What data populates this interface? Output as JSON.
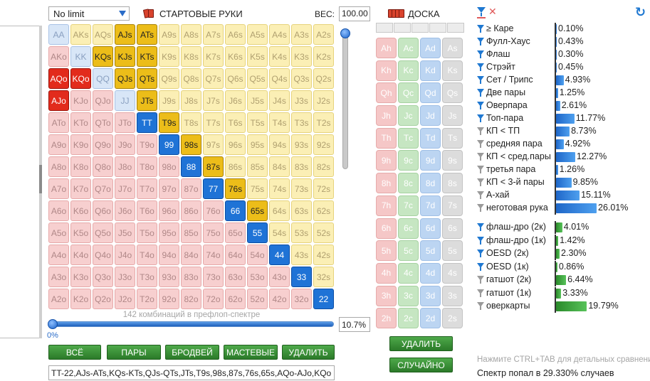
{
  "limit_select": {
    "value": "No limit"
  },
  "hands_title": "СТАРТОВЫЕ РУКИ",
  "weight": {
    "label": "ВЕС:",
    "value": "100.00"
  },
  "grid": [
    [
      "AA",
      "AKs",
      "AQs",
      "AJs",
      "ATs",
      "A9s",
      "A8s",
      "A7s",
      "A6s",
      "A5s",
      "A4s",
      "A3s",
      "A2s"
    ],
    [
      "AKo",
      "KK",
      "KQs",
      "KJs",
      "KTs",
      "K9s",
      "K8s",
      "K7s",
      "K6s",
      "K5s",
      "K4s",
      "K3s",
      "K2s"
    ],
    [
      "AQo",
      "KQo",
      "QQ",
      "QJs",
      "QTs",
      "Q9s",
      "Q8s",
      "Q7s",
      "Q6s",
      "Q5s",
      "Q4s",
      "Q3s",
      "Q2s"
    ],
    [
      "AJo",
      "KJo",
      "QJo",
      "JJ",
      "JTs",
      "J9s",
      "J8s",
      "J7s",
      "J6s",
      "J5s",
      "J4s",
      "J3s",
      "J2s"
    ],
    [
      "ATo",
      "KTo",
      "QTo",
      "JTo",
      "TT",
      "T9s",
      "T8s",
      "T7s",
      "T6s",
      "T5s",
      "T4s",
      "T3s",
      "T2s"
    ],
    [
      "A9o",
      "K9o",
      "Q9o",
      "J9o",
      "T9o",
      "99",
      "98s",
      "97s",
      "96s",
      "95s",
      "94s",
      "93s",
      "92s"
    ],
    [
      "A8o",
      "K8o",
      "Q8o",
      "J8o",
      "T8o",
      "98o",
      "88",
      "87s",
      "86s",
      "85s",
      "84s",
      "83s",
      "82s"
    ],
    [
      "A7o",
      "K7o",
      "Q7o",
      "J7o",
      "T7o",
      "97o",
      "87o",
      "77",
      "76s",
      "75s",
      "74s",
      "73s",
      "72s"
    ],
    [
      "A6o",
      "K6o",
      "Q6o",
      "J6o",
      "T6o",
      "96o",
      "86o",
      "76o",
      "66",
      "65s",
      "64s",
      "63s",
      "62s"
    ],
    [
      "A5o",
      "K5o",
      "Q5o",
      "J5o",
      "T5o",
      "95o",
      "85o",
      "75o",
      "65o",
      "55",
      "54s",
      "53s",
      "52s"
    ],
    [
      "A4o",
      "K4o",
      "Q4o",
      "J4o",
      "T4o",
      "94o",
      "84o",
      "74o",
      "64o",
      "54o",
      "44",
      "43s",
      "42s"
    ],
    [
      "A3o",
      "K3o",
      "Q3o",
      "J3o",
      "T3o",
      "93o",
      "83o",
      "73o",
      "63o",
      "53o",
      "43o",
      "33",
      "32s"
    ],
    [
      "A2o",
      "K2o",
      "Q2o",
      "J2o",
      "T2o",
      "92o",
      "82o",
      "72o",
      "62o",
      "52o",
      "42o",
      "32o",
      "22"
    ]
  ],
  "selected_hands": [
    "TT",
    "99",
    "88",
    "77",
    "66",
    "55",
    "44",
    "33",
    "22",
    "AJs",
    "ATs",
    "KQs",
    "KJs",
    "KTs",
    "QJs",
    "QTs",
    "JTs",
    "T9s",
    "98s",
    "87s",
    "76s",
    "65s",
    "AQo",
    "KQo",
    "AJo"
  ],
  "combo_caption": "142 комбинаций в префлоп-спектре",
  "range_slider": {
    "min_label": "0%",
    "value": "10.7%",
    "fraction": 0.107
  },
  "buttons": {
    "all": "ВСЁ",
    "pairs": "ПАРЫ",
    "broadway": "БРОДВЕЙ",
    "suited": "МАСТЕВЫЕ",
    "delete": "УДАЛИТЬ"
  },
  "range_text": "TT-22,AJs-ATs,KQs-KTs,QJs-QTs,JTs,T9s,98s,87s,76s,65s,AQo-AJo,KQo",
  "board": {
    "title": "ДОСКА",
    "ranks": [
      "A",
      "K",
      "Q",
      "J",
      "T",
      "9",
      "8",
      "7",
      "6",
      "5",
      "4",
      "3",
      "2"
    ],
    "suits": [
      "h",
      "c",
      "d",
      "s"
    ],
    "delete_label": "УДАЛИТЬ",
    "random_label": "СЛУЧАЙНО"
  },
  "stats_made": [
    {
      "label": "≥ Каре",
      "value": "0.10%",
      "pct": 0.1,
      "active": true
    },
    {
      "label": "Фулл-Хаус",
      "value": "0.43%",
      "pct": 0.43,
      "active": true
    },
    {
      "label": "Флаш",
      "value": "0.30%",
      "pct": 0.3,
      "active": true
    },
    {
      "label": "Стрэйт",
      "value": "0.45%",
      "pct": 0.45,
      "active": true
    },
    {
      "label": "Сет / Трипс",
      "value": "4.93%",
      "pct": 4.93,
      "active": true
    },
    {
      "label": "Две пары",
      "value": "1.25%",
      "pct": 1.25,
      "active": true
    },
    {
      "label": "Оверпара",
      "value": "2.61%",
      "pct": 2.61,
      "active": true
    },
    {
      "label": "Топ-пара",
      "value": "11.77%",
      "pct": 11.77,
      "active": true
    },
    {
      "label": "КП < ТП",
      "value": "8.73%",
      "pct": 8.73,
      "active": false
    },
    {
      "label": "средняя пара",
      "value": "4.92%",
      "pct": 4.92,
      "active": false
    },
    {
      "label": "КП < сред.пары",
      "value": "12.27%",
      "pct": 12.27,
      "active": false
    },
    {
      "label": "третья пара",
      "value": "1.26%",
      "pct": 1.26,
      "active": false
    },
    {
      "label": "КП < 3-й пары",
      "value": "9.85%",
      "pct": 9.85,
      "active": false
    },
    {
      "label": "А-хай",
      "value": "15.11%",
      "pct": 15.11,
      "active": false
    },
    {
      "label": "неготовая рука",
      "value": "26.01%",
      "pct": 26.01,
      "active": false
    }
  ],
  "stats_draws": [
    {
      "label": "флаш-дро (2к)",
      "value": "4.01%",
      "pct": 4.01,
      "active": true
    },
    {
      "label": "флаш-дро (1к)",
      "value": "1.42%",
      "pct": 1.42,
      "active": true
    },
    {
      "label": "OESD (2к)",
      "value": "2.30%",
      "pct": 2.3,
      "active": true
    },
    {
      "label": "OESD (1к)",
      "value": "0.86%",
      "pct": 0.86,
      "active": true
    },
    {
      "label": "гатшот (2к)",
      "value": "6.44%",
      "pct": 6.44,
      "active": false
    },
    {
      "label": "гатшот (1к)",
      "value": "3.33%",
      "pct": 3.33,
      "active": false
    },
    {
      "label": "оверкарты",
      "value": "19.79%",
      "pct": 19.79,
      "active": false
    }
  ],
  "hint": "Нажмите CTRL+TAB для детальных сравнений",
  "hit_text": "Спектр попал в 29.330% случаев",
  "colors": {
    "pair": "#d8e6f7",
    "suited": "#fbefb5",
    "offsuit": "#f7cfcf",
    "selected_pair": "#1f73d6",
    "selected_suited": "#ecbd19",
    "selected_offsuit": "#e22b1c",
    "button_green": "#3a8f37",
    "accent_blue": "#1f78d1"
  }
}
